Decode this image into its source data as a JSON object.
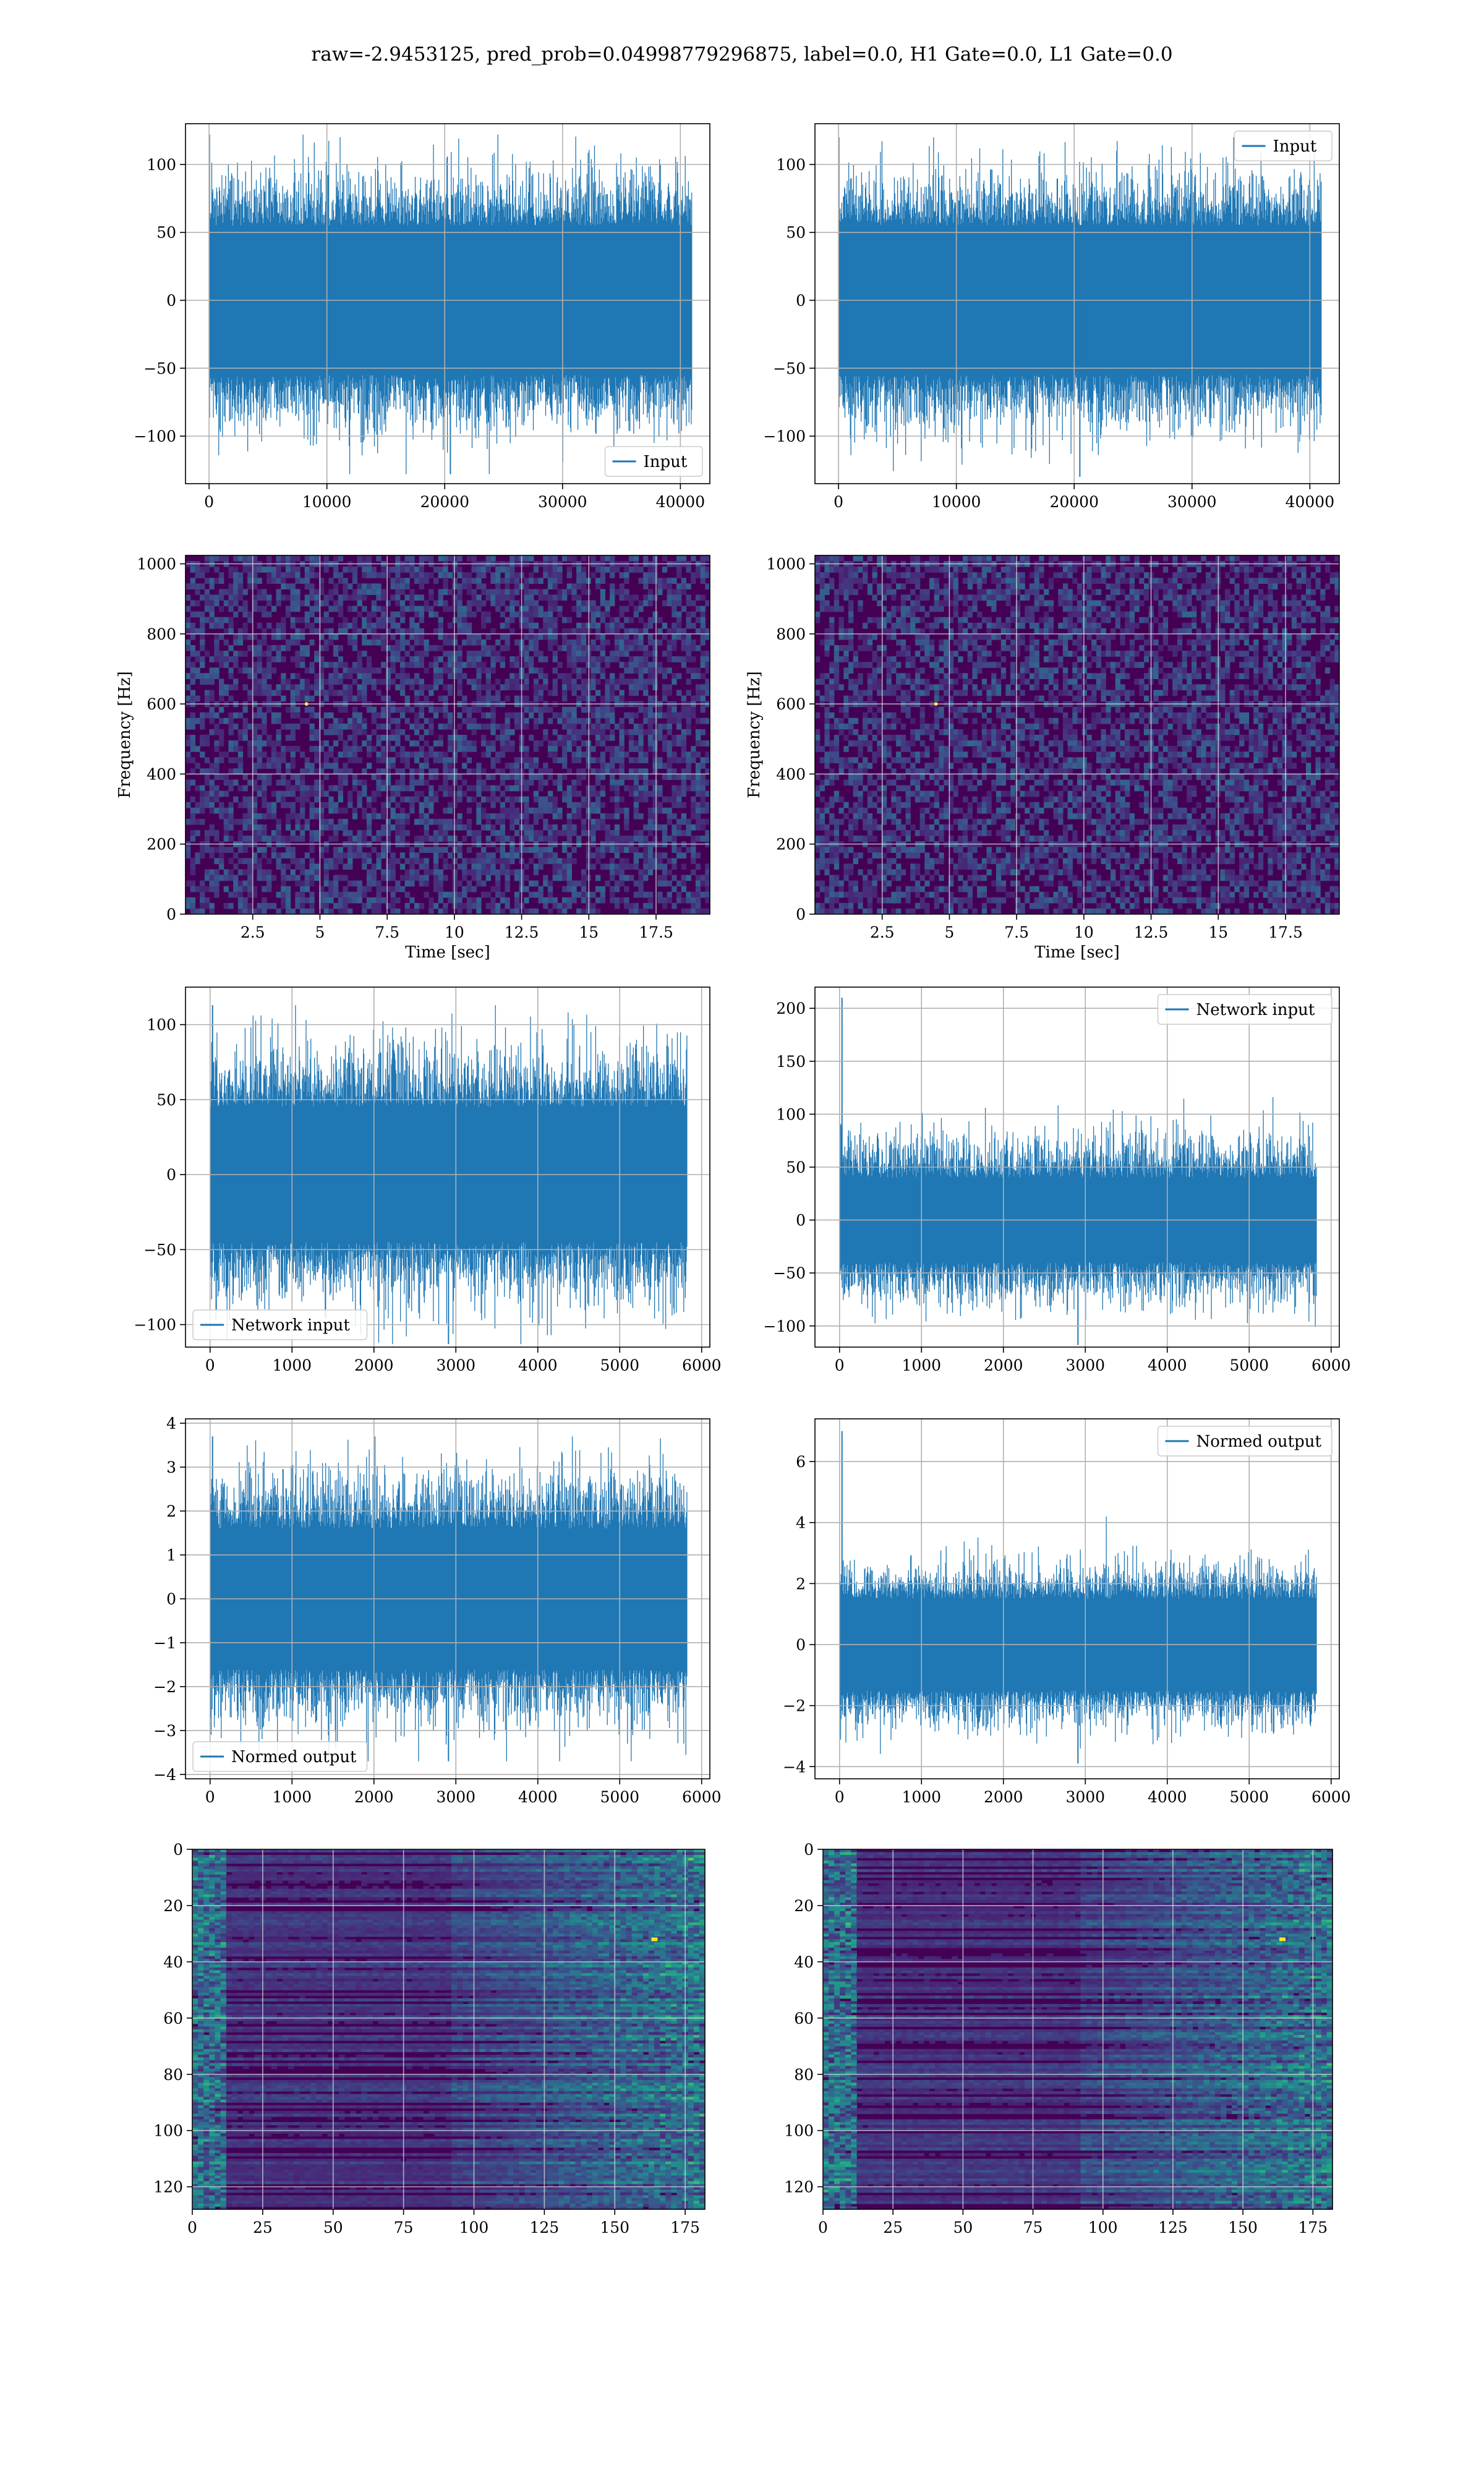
{
  "suptitle": "raw=-2.9453125, pred_prob=0.04998779296875, label=0.0, H1 Gate=0.0, L1 Gate=0.0",
  "colors": {
    "series": "#1f77b4",
    "grid": "#b0b0b0",
    "viridis_low": "#440154",
    "viridis_high": "#fde725"
  },
  "chart_data": [
    {
      "type": "line",
      "panel": "row1-left",
      "xlim": [
        -2000,
        42500
      ],
      "ylim": [
        -135,
        130
      ],
      "xticks": [
        0,
        10000,
        20000,
        30000,
        40000
      ],
      "yticks": [
        -100,
        -50,
        0,
        50,
        100
      ],
      "series": [
        {
          "name": "Input",
          "x_range": [
            0,
            40960
          ],
          "env_pos": [
            55,
            80
          ],
          "env_neg": [
            -55,
            -80
          ],
          "max": 122,
          "min": -128
        }
      ],
      "legend": "lower right",
      "grid": true
    },
    {
      "type": "line",
      "panel": "row1-right",
      "xlim": [
        -2000,
        42500
      ],
      "ylim": [
        -135,
        130
      ],
      "xticks": [
        0,
        10000,
        20000,
        30000,
        40000
      ],
      "yticks": [
        -100,
        -50,
        0,
        50,
        100
      ],
      "series": [
        {
          "name": "Input",
          "x_range": [
            0,
            40960
          ],
          "env_pos": [
            55,
            78
          ],
          "env_neg": [
            -55,
            -80
          ],
          "max": 120,
          "min": -130
        }
      ],
      "legend": "upper right",
      "grid": true
    },
    {
      "type": "heatmap",
      "panel": "row2-left",
      "xlim": [
        0,
        19.5
      ],
      "ylim": [
        0,
        1024
      ],
      "xticks": [
        2.5,
        5.0,
        7.5,
        10.0,
        12.5,
        15.0,
        17.5
      ],
      "yticks": [
        0,
        200,
        400,
        600,
        800,
        1000
      ],
      "xlabel": "Time [sec]",
      "ylabel": "Frequency [Hz]",
      "colormap": "viridis",
      "grid": true
    },
    {
      "type": "heatmap",
      "panel": "row2-right",
      "xlim": [
        0,
        19.5
      ],
      "ylim": [
        0,
        1024
      ],
      "xticks": [
        2.5,
        5.0,
        7.5,
        10.0,
        12.5,
        15.0,
        17.5
      ],
      "yticks": [
        0,
        200,
        400,
        600,
        800,
        1000
      ],
      "xlabel": "Time [sec]",
      "ylabel": "Frequency [Hz]",
      "colormap": "viridis",
      "grid": true
    },
    {
      "type": "line",
      "panel": "row3-left",
      "xlim": [
        -300,
        6100
      ],
      "ylim": [
        -115,
        125
      ],
      "xticks": [
        0,
        1000,
        2000,
        3000,
        4000,
        5000,
        6000
      ],
      "yticks": [
        -100,
        -50,
        0,
        50,
        100
      ],
      "series": [
        {
          "name": "Network input",
          "x_range": [
            0,
            5820
          ],
          "env_pos": [
            45,
            70
          ],
          "env_neg": [
            -45,
            -70
          ],
          "max": 113,
          "min": -113
        }
      ],
      "legend": "lower left",
      "grid": true
    },
    {
      "type": "line",
      "panel": "row3-right",
      "xlim": [
        -300,
        6100
      ],
      "ylim": [
        -120,
        220
      ],
      "xticks": [
        0,
        1000,
        2000,
        3000,
        4000,
        5000,
        6000
      ],
      "yticks": [
        -100,
        -50,
        0,
        50,
        100,
        150,
        200
      ],
      "series": [
        {
          "name": "Network input",
          "x_range": [
            0,
            5820
          ],
          "env_pos": [
            40,
            65
          ],
          "env_neg": [
            -40,
            -65
          ],
          "max": 210,
          "min": -118
        }
      ],
      "legend": "upper right",
      "grid": true
    },
    {
      "type": "line",
      "panel": "row4-left",
      "xlim": [
        -300,
        6100
      ],
      "ylim": [
        -4.1,
        4.1
      ],
      "xticks": [
        0,
        1000,
        2000,
        3000,
        4000,
        5000,
        6000
      ],
      "yticks": [
        -4,
        -3,
        -2,
        -1,
        0,
        1,
        2,
        3,
        4
      ],
      "series": [
        {
          "name": "Normed output",
          "x_range": [
            0,
            5820
          ],
          "env_pos": [
            1.6,
            2.4
          ],
          "env_neg": [
            -1.6,
            -2.4
          ],
          "max": 3.7,
          "min": -3.7
        }
      ],
      "legend": "lower left",
      "grid": true
    },
    {
      "type": "line",
      "panel": "row4-right",
      "xlim": [
        -300,
        6100
      ],
      "ylim": [
        -4.4,
        7.4
      ],
      "xticks": [
        0,
        1000,
        2000,
        3000,
        4000,
        5000,
        6000
      ],
      "yticks": [
        -4,
        -2,
        0,
        2,
        4,
        6
      ],
      "series": [
        {
          "name": "Normed output",
          "x_range": [
            0,
            5820
          ],
          "env_pos": [
            1.5,
            2.2
          ],
          "env_neg": [
            -1.5,
            -2.2
          ],
          "max": 7.0,
          "min": -3.9
        }
      ],
      "legend": "upper right",
      "grid": true
    },
    {
      "type": "heatmap",
      "panel": "row5-left",
      "xlim": [
        0,
        182
      ],
      "ylim": [
        128,
        0
      ],
      "xticks": [
        0,
        25,
        50,
        75,
        100,
        125,
        150,
        175
      ],
      "yticks": [
        0,
        20,
        40,
        60,
        80,
        100,
        120
      ],
      "colormap": "viridis",
      "grid": true
    },
    {
      "type": "heatmap",
      "panel": "row5-right",
      "xlim": [
        0,
        182
      ],
      "ylim": [
        128,
        0
      ],
      "xticks": [
        0,
        25,
        50,
        75,
        100,
        125,
        150,
        175
      ],
      "yticks": [
        0,
        20,
        40,
        60,
        80,
        100,
        120
      ],
      "colormap": "viridis",
      "grid": true
    }
  ]
}
